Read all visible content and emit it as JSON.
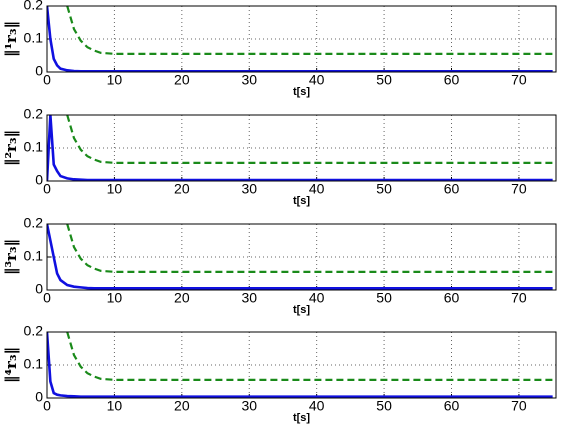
{
  "chart_data": [
    {
      "type": "line",
      "ylabel": "‖¹r₃‖",
      "xlabel": "t[s]",
      "x": [
        0,
        0.5,
        1,
        1.5,
        2,
        3,
        4,
        5,
        6,
        7,
        8,
        10,
        15,
        20,
        25,
        30,
        35,
        40,
        45,
        50,
        55,
        60,
        65,
        70,
        75
      ],
      "xlim": [
        0,
        75.5
      ],
      "xticks": [
        0,
        10,
        20,
        30,
        40,
        50,
        60,
        70
      ],
      "ylim": [
        0,
        0.2
      ],
      "yticks": [
        0,
        0.1,
        0.2
      ],
      "grid": true,
      "series": [
        {
          "color": "#1010e0",
          "linestyle": "solid",
          "values": [
            0.2,
            0.1,
            0.04,
            0.02,
            0.01,
            0.005,
            0.003,
            0.002,
            0.002,
            0.002,
            0.002,
            0.002,
            0.002,
            0.002,
            0.002,
            0.002,
            0.002,
            0.002,
            0.002,
            0.002,
            0.002,
            0.002,
            0.002,
            0.002,
            0.002
          ]
        },
        {
          "color": "#1a8a1a",
          "linestyle": "dashed",
          "values": [
            null,
            null,
            null,
            null,
            null,
            0.2,
            0.13,
            0.095,
            0.075,
            0.065,
            0.058,
            0.055,
            0.055,
            0.055,
            0.055,
            0.055,
            0.055,
            0.055,
            0.055,
            0.055,
            0.055,
            0.055,
            0.055,
            0.055,
            0.055
          ]
        }
      ]
    },
    {
      "type": "line",
      "ylabel": "‖²r₃‖",
      "xlabel": "t[s]",
      "x": [
        0,
        0.5,
        1,
        1.5,
        2,
        3,
        4,
        5,
        6,
        7,
        8,
        10,
        15,
        20,
        25,
        30,
        35,
        40,
        45,
        50,
        55,
        60,
        65,
        70,
        75
      ],
      "xlim": [
        0,
        75.5
      ],
      "xticks": [
        0,
        10,
        20,
        30,
        40,
        50,
        60,
        70
      ],
      "ylim": [
        0,
        0.2
      ],
      "yticks": [
        0,
        0.1,
        0.2
      ],
      "grid": true,
      "series": [
        {
          "color": "#1010e0",
          "linestyle": "solid",
          "values": [
            0,
            0.2,
            0.05,
            0.03,
            0.015,
            0.008,
            0.005,
            0.004,
            0.003,
            0.003,
            0.003,
            0.003,
            0.003,
            0.003,
            0.003,
            0.003,
            0.003,
            0.003,
            0.003,
            0.003,
            0.003,
            0.003,
            0.003,
            0.003,
            0.003
          ]
        },
        {
          "color": "#1a8a1a",
          "linestyle": "dashed",
          "values": [
            null,
            null,
            null,
            null,
            null,
            0.2,
            0.13,
            0.095,
            0.075,
            0.065,
            0.058,
            0.055,
            0.055,
            0.055,
            0.055,
            0.055,
            0.055,
            0.055,
            0.055,
            0.055,
            0.055,
            0.055,
            0.055,
            0.055,
            0.055
          ]
        }
      ]
    },
    {
      "type": "line",
      "ylabel": "‖³r₃‖",
      "xlabel": "t[s]",
      "x": [
        0,
        0.5,
        1,
        1.5,
        2,
        3,
        4,
        5,
        6,
        7,
        8,
        10,
        15,
        20,
        25,
        30,
        35,
        40,
        45,
        50,
        55,
        60,
        65,
        70,
        75
      ],
      "xlim": [
        0,
        75.5
      ],
      "xticks": [
        0,
        10,
        20,
        30,
        40,
        50,
        60,
        70
      ],
      "ylim": [
        0,
        0.2
      ],
      "yticks": [
        0,
        0.1,
        0.2
      ],
      "grid": true,
      "series": [
        {
          "color": "#1010e0",
          "linestyle": "solid",
          "values": [
            0.2,
            0.15,
            0.1,
            0.05,
            0.03,
            0.015,
            0.01,
            0.008,
            0.006,
            0.005,
            0.005,
            0.005,
            0.005,
            0.005,
            0.005,
            0.005,
            0.005,
            0.005,
            0.005,
            0.005,
            0.005,
            0.005,
            0.005,
            0.005,
            0.005
          ]
        },
        {
          "color": "#1a8a1a",
          "linestyle": "dashed",
          "values": [
            null,
            null,
            null,
            null,
            null,
            0.2,
            0.13,
            0.095,
            0.075,
            0.065,
            0.058,
            0.055,
            0.055,
            0.055,
            0.055,
            0.055,
            0.055,
            0.055,
            0.055,
            0.055,
            0.055,
            0.055,
            0.055,
            0.055,
            0.055
          ]
        }
      ]
    },
    {
      "type": "line",
      "ylabel": "‖⁴r₃‖",
      "xlabel": "t[s]",
      "x": [
        0,
        0.5,
        1,
        1.5,
        2,
        3,
        4,
        5,
        6,
        7,
        8,
        10,
        15,
        20,
        25,
        30,
        35,
        40,
        45,
        50,
        55,
        60,
        65,
        70,
        75
      ],
      "xlim": [
        0,
        75.5
      ],
      "xticks": [
        0,
        10,
        20,
        30,
        40,
        50,
        60,
        70
      ],
      "ylim": [
        0,
        0.2
      ],
      "yticks": [
        0,
        0.1,
        0.2
      ],
      "grid": true,
      "series": [
        {
          "color": "#1010e0",
          "linestyle": "solid",
          "values": [
            0.2,
            0.05,
            0.015,
            0.01,
            0.008,
            0.006,
            0.005,
            0.004,
            0.004,
            0.004,
            0.004,
            0.004,
            0.004,
            0.004,
            0.004,
            0.004,
            0.004,
            0.004,
            0.004,
            0.004,
            0.004,
            0.004,
            0.004,
            0.004,
            0.004
          ]
        },
        {
          "color": "#1a8a1a",
          "linestyle": "dashed",
          "values": [
            null,
            null,
            null,
            null,
            null,
            0.2,
            0.13,
            0.095,
            0.075,
            0.065,
            0.058,
            0.055,
            0.055,
            0.055,
            0.055,
            0.055,
            0.055,
            0.055,
            0.055,
            0.055,
            0.055,
            0.055,
            0.055,
            0.055,
            0.055
          ]
        }
      ]
    }
  ]
}
